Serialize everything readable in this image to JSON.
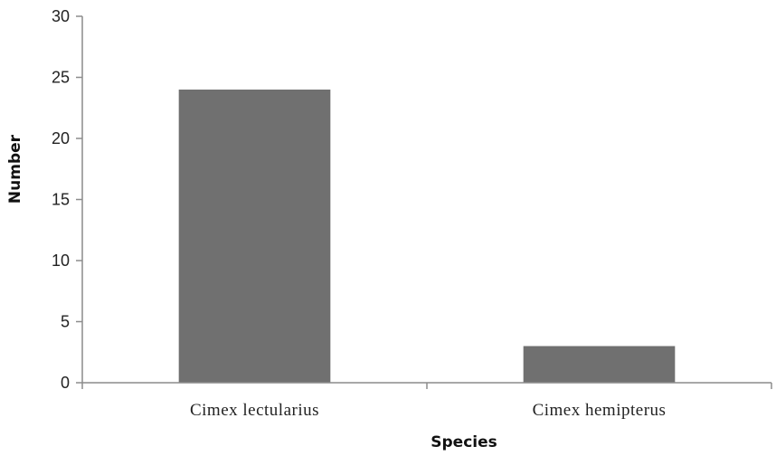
{
  "chart_data": {
    "type": "bar",
    "title": "",
    "xlabel": "Species",
    "ylabel": "Number",
    "categories": [
      "Cimex lectularius",
      "Cimex hemipterus"
    ],
    "values": [
      24,
      3
    ],
    "ylim": [
      0,
      30
    ],
    "yticks": [
      "0",
      "5",
      "10",
      "15",
      "20",
      "25",
      "30"
    ],
    "grid": false,
    "legend": "none",
    "bar_color": "#707070"
  }
}
